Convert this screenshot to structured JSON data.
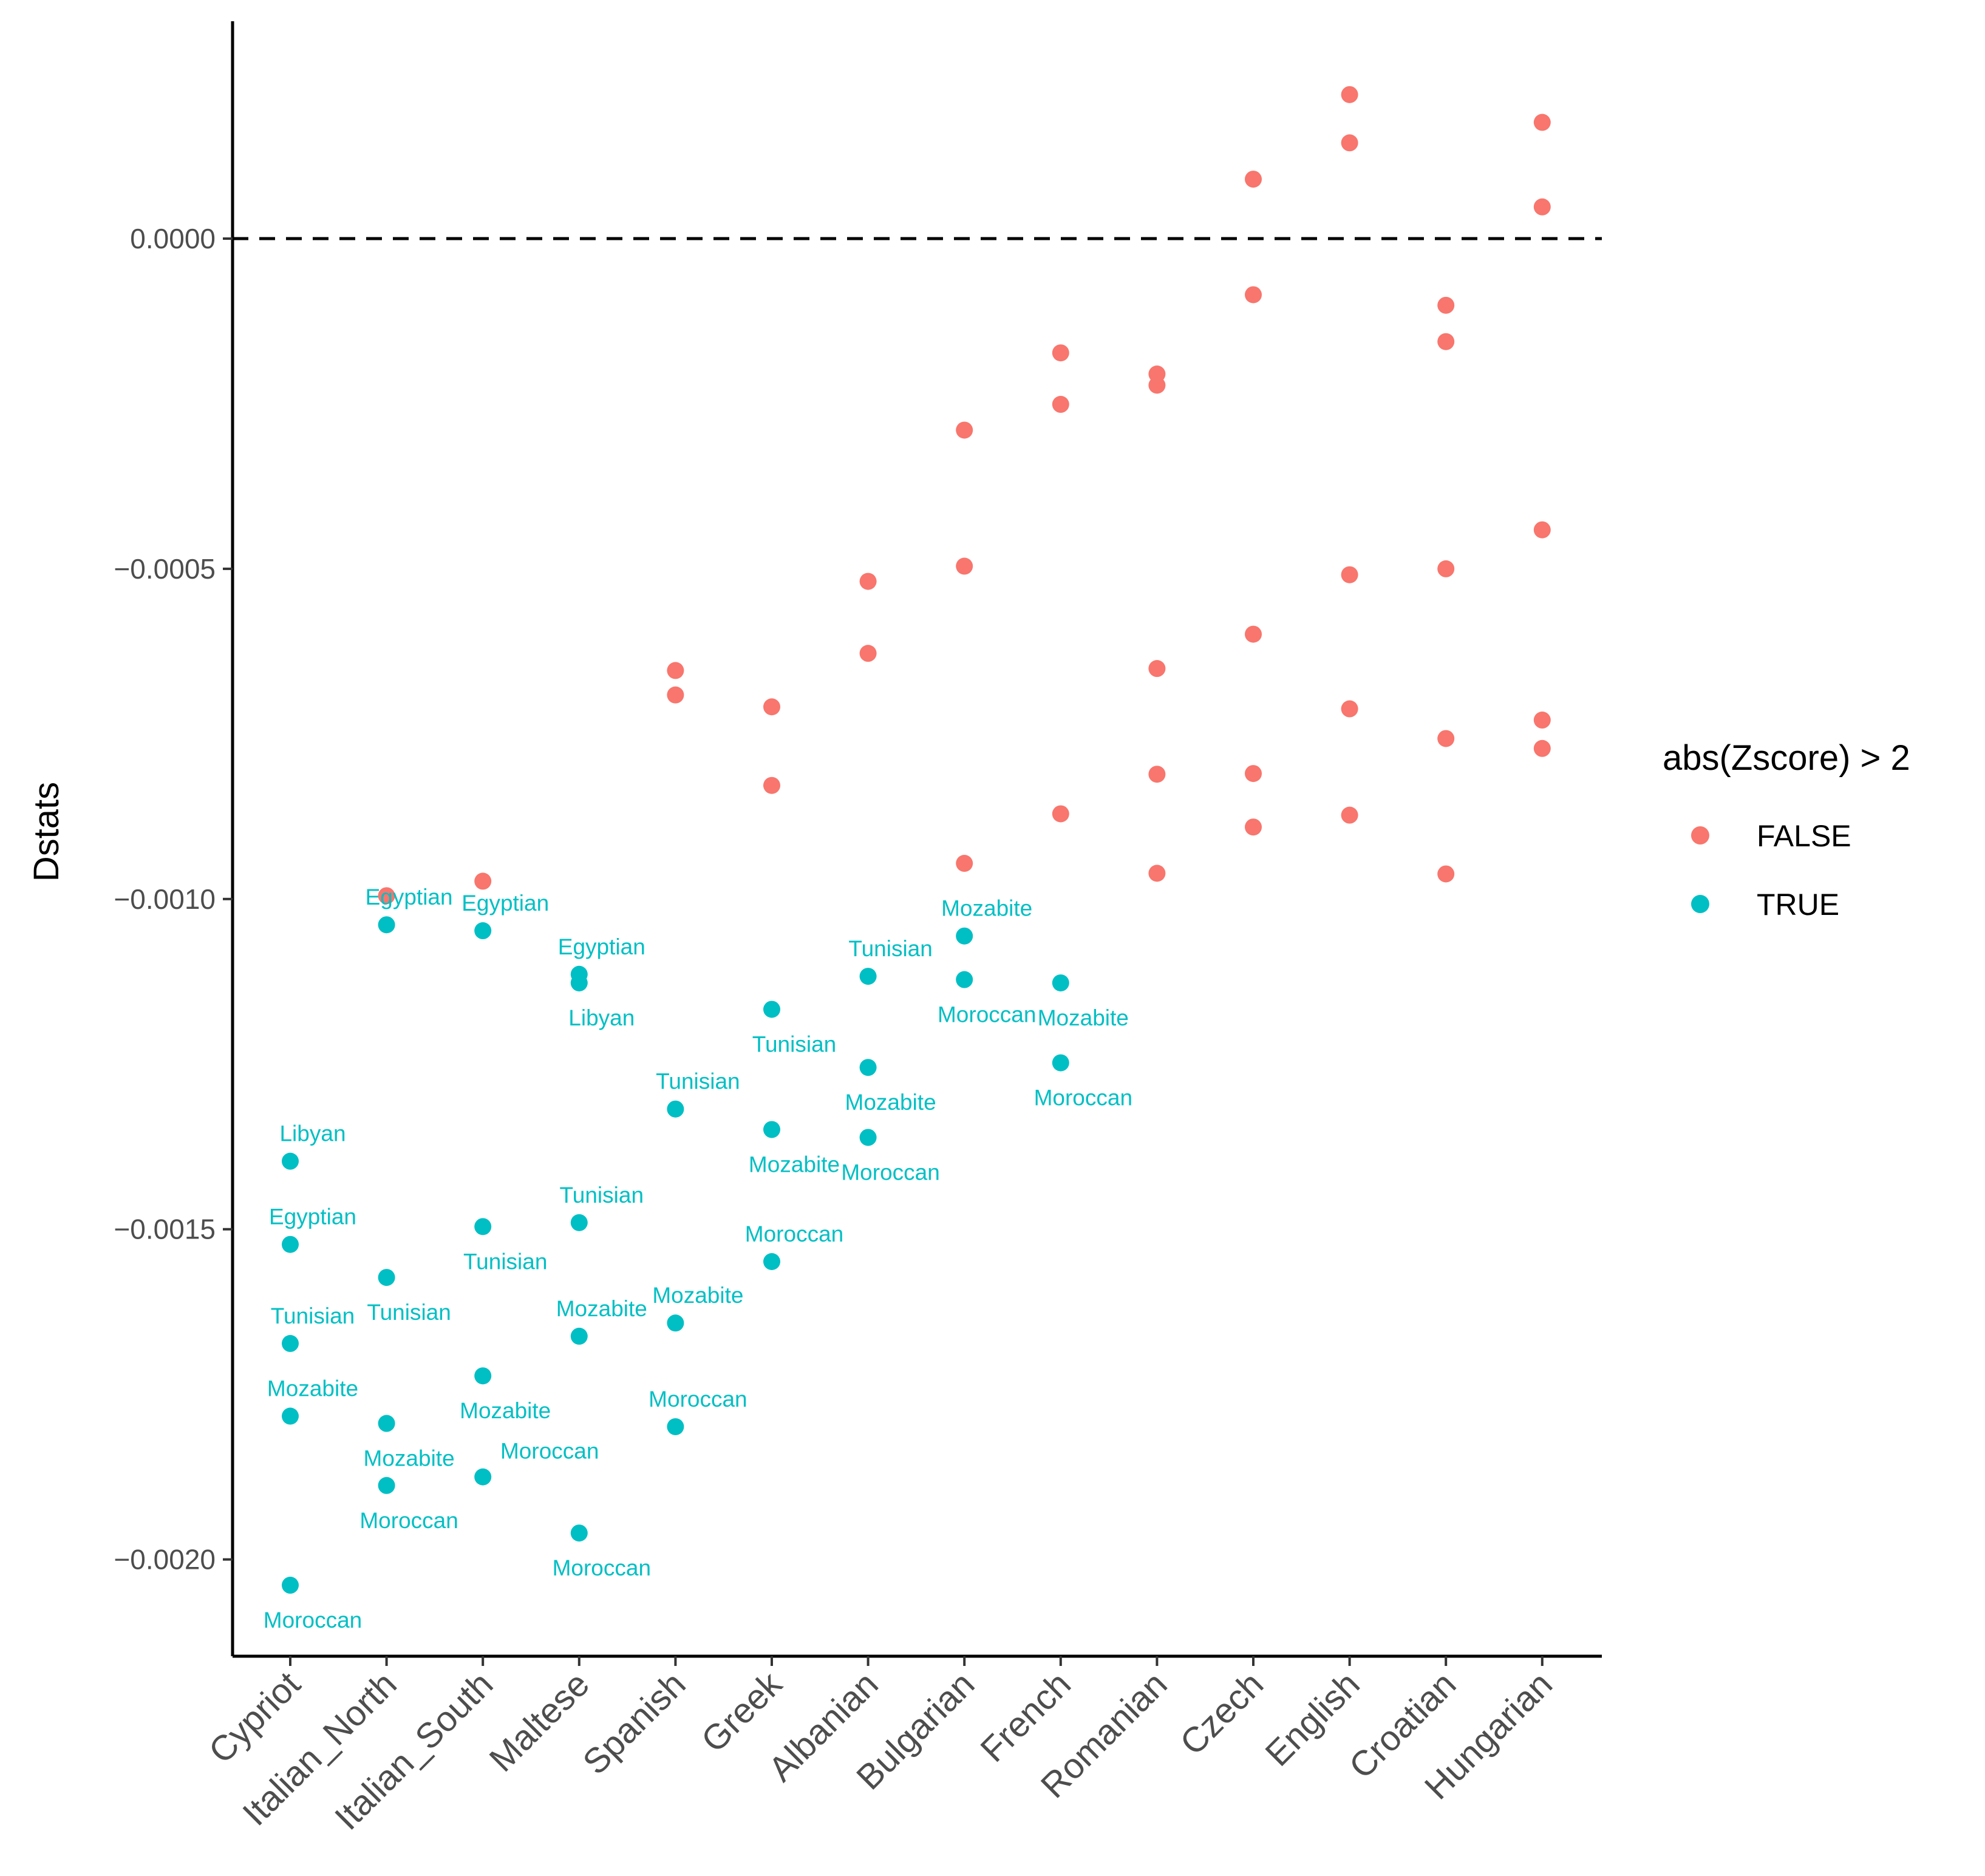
{
  "chart_data": {
    "type": "scatter",
    "title": "",
    "xlabel": "",
    "ylabel": "Dstats",
    "ylim": [
      -0.00213,
      0.00033
    ],
    "yticks": [
      0.0,
      -0.0005,
      -0.001,
      -0.0015,
      -0.002
    ],
    "ytick_labels": [
      "0.0000",
      "−0.0005",
      "−0.0010",
      "−0.0015",
      "−0.0020"
    ],
    "reference_line": {
      "y": 0.0,
      "style": "dashed"
    },
    "grid": false,
    "categories": [
      "Cypriot",
      "Italian_North",
      "Italian_South",
      "Maltese",
      "Spanish",
      "Greek",
      "Albanian",
      "Bulgarian",
      "French",
      "Romanian",
      "Czech",
      "English",
      "Croatian",
      "Hungarian"
    ],
    "legend": {
      "title": "abs(Zscore) > 2",
      "position": "right",
      "entries": [
        {
          "label": "FALSE",
          "color": "#F8766D"
        },
        {
          "label": "TRUE",
          "color": "#00BFC4"
        }
      ]
    },
    "series": [
      {
        "name": "FALSE",
        "color": "#F8766D",
        "points": [
          {
            "x": "Italian_North",
            "y": -0.000995
          },
          {
            "x": "Italian_South",
            "y": -0.000973
          },
          {
            "x": "Spanish",
            "y": -0.000654
          },
          {
            "x": "Spanish",
            "y": -0.000691
          },
          {
            "x": "Greek",
            "y": -0.000709
          },
          {
            "x": "Greek",
            "y": -0.000828
          },
          {
            "x": "Albanian",
            "y": -0.000519
          },
          {
            "x": "Albanian",
            "y": -0.000628
          },
          {
            "x": "Bulgarian",
            "y": -0.00029
          },
          {
            "x": "Bulgarian",
            "y": -0.000496
          },
          {
            "x": "Bulgarian",
            "y": -0.000946
          },
          {
            "x": "French",
            "y": -0.000173
          },
          {
            "x": "French",
            "y": -0.000251
          },
          {
            "x": "French",
            "y": -0.000871
          },
          {
            "x": "Romanian",
            "y": -0.000205
          },
          {
            "x": "Romanian",
            "y": -0.000222
          },
          {
            "x": "Romanian",
            "y": -0.000651
          },
          {
            "x": "Romanian",
            "y": -0.000811
          },
          {
            "x": "Romanian",
            "y": -0.000961
          },
          {
            "x": "Czech",
            "y": 9e-05
          },
          {
            "x": "Czech",
            "y": -8.5e-05
          },
          {
            "x": "Czech",
            "y": -0.000599
          },
          {
            "x": "Czech",
            "y": -0.00081
          },
          {
            "x": "Czech",
            "y": -0.000891
          },
          {
            "x": "English",
            "y": 0.000218
          },
          {
            "x": "English",
            "y": 0.000145
          },
          {
            "x": "English",
            "y": -0.000509
          },
          {
            "x": "English",
            "y": -0.000712
          },
          {
            "x": "English",
            "y": -0.000873
          },
          {
            "x": "Croatian",
            "y": -0.000101
          },
          {
            "x": "Croatian",
            "y": -0.000156
          },
          {
            "x": "Croatian",
            "y": -0.0005
          },
          {
            "x": "Croatian",
            "y": -0.000757
          },
          {
            "x": "Croatian",
            "y": -0.000962
          },
          {
            "x": "Hungarian",
            "y": 0.000176
          },
          {
            "x": "Hungarian",
            "y": 4.8e-05
          },
          {
            "x": "Hungarian",
            "y": -0.000441
          },
          {
            "x": "Hungarian",
            "y": -0.000729
          },
          {
            "x": "Hungarian",
            "y": -0.000772
          }
        ]
      },
      {
        "name": "TRUE",
        "color": "#00BFC4",
        "points": [
          {
            "x": "Cypriot",
            "y": -0.001397,
            "label": "Libyan",
            "label_pos": "above"
          },
          {
            "x": "Cypriot",
            "y": -0.001523,
            "label": "Egyptian",
            "label_pos": "above"
          },
          {
            "x": "Cypriot",
            "y": -0.001673,
            "label": "Tunisian",
            "label_pos": "above"
          },
          {
            "x": "Cypriot",
            "y": -0.001783,
            "label": "Mozabite",
            "label_pos": "above"
          },
          {
            "x": "Cypriot",
            "y": -0.002039,
            "label": "Moroccan",
            "label_pos": "below"
          },
          {
            "x": "Italian_North",
            "y": -0.001039,
            "label": "Egyptian",
            "label_pos": "above"
          },
          {
            "x": "Italian_North",
            "y": -0.001573,
            "label": "Tunisian",
            "label_pos": "below"
          },
          {
            "x": "Italian_North",
            "y": -0.001794,
            "label": "Mozabite",
            "label_pos": "below"
          },
          {
            "x": "Italian_North",
            "y": -0.001888,
            "label": "Moroccan",
            "label_pos": "below"
          },
          {
            "x": "Italian_South",
            "y": -0.001048,
            "label": "Egyptian",
            "label_pos": "above"
          },
          {
            "x": "Italian_South",
            "y": -0.001496,
            "label": "Tunisian",
            "label_pos": "below"
          },
          {
            "x": "Italian_South",
            "y": -0.001722,
            "label": "Mozabite",
            "label_pos": "below"
          },
          {
            "x": "Italian_South",
            "y": -0.001875,
            "label": "Moroccan",
            "label_pos": "above-right"
          },
          {
            "x": "Maltese",
            "y": -0.001114,
            "label": "Egyptian",
            "label_pos": "above"
          },
          {
            "x": "Maltese",
            "y": -0.001127,
            "label": "Libyan",
            "label_pos": "below"
          },
          {
            "x": "Maltese",
            "y": -0.00149,
            "label": "Tunisian",
            "label_pos": "above"
          },
          {
            "x": "Maltese",
            "y": -0.001662,
            "label": "Mozabite",
            "label_pos": "above"
          },
          {
            "x": "Maltese",
            "y": -0.00196,
            "label": "Moroccan",
            "label_pos": "below"
          },
          {
            "x": "Spanish",
            "y": -0.001318,
            "label": "Tunisian",
            "label_pos": "above"
          },
          {
            "x": "Spanish",
            "y": -0.001642,
            "label": "Mozabite",
            "label_pos": "above"
          },
          {
            "x": "Spanish",
            "y": -0.001799,
            "label": "Moroccan",
            "label_pos": "above"
          },
          {
            "x": "Greek",
            "y": -0.001167,
            "label": "Tunisian",
            "label_pos": "below"
          },
          {
            "x": "Greek",
            "y": -0.001349,
            "label": "Mozabite",
            "label_pos": "below"
          },
          {
            "x": "Greek",
            "y": -0.001549,
            "label": "Moroccan",
            "label_pos": "above"
          },
          {
            "x": "Albanian",
            "y": -0.001117,
            "label": "Tunisian",
            "label_pos": "above"
          },
          {
            "x": "Albanian",
            "y": -0.001255,
            "label": "Mozabite",
            "label_pos": "below"
          },
          {
            "x": "Albanian",
            "y": -0.001361,
            "label": "Moroccan",
            "label_pos": "below"
          },
          {
            "x": "Bulgarian",
            "y": -0.001056,
            "label": "Mozabite",
            "label_pos": "above"
          },
          {
            "x": "Bulgarian",
            "y": -0.001122,
            "label": "Moroccan",
            "label_pos": "below"
          },
          {
            "x": "French",
            "y": -0.001127,
            "label": "Mozabite",
            "label_pos": "below"
          },
          {
            "x": "French",
            "y": -0.001248,
            "label": "Moroccan",
            "label_pos": "below"
          }
        ]
      }
    ]
  }
}
